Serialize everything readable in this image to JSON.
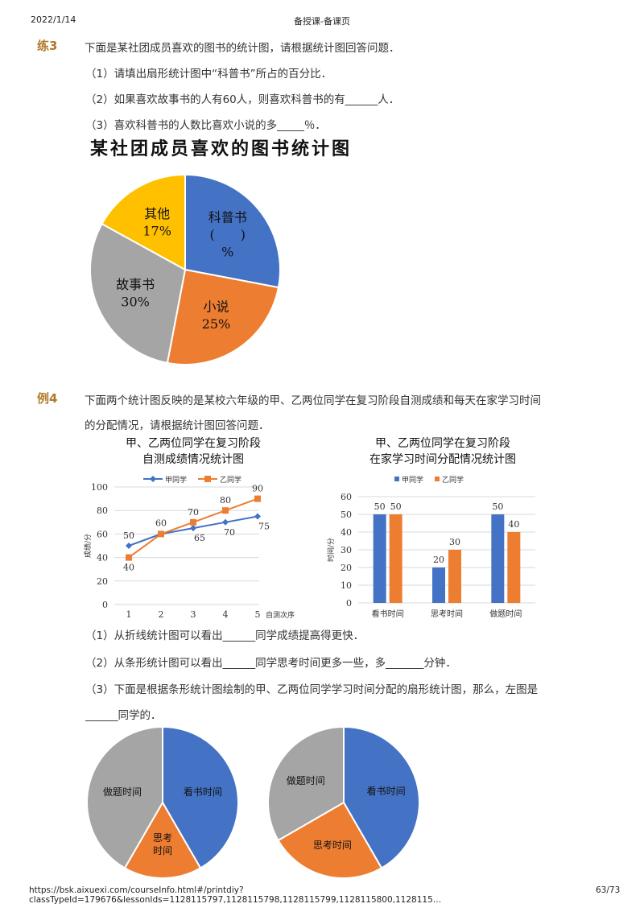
{
  "header": {
    "date": "2022/1/14",
    "title": "备授课-备课页"
  },
  "exercise3": {
    "label": "练3",
    "intro": "下面是某社团成员喜欢的图书的统计图，请根据统计图回答问题．",
    "q1": "（1）请填出扇形统计图中“科普书”所占的百分比．",
    "q2": "（2）如果喜欢故事书的人有60人，则喜欢科普书的有______人．",
    "q3": "（3）喜欢科普书的人数比喜欢小说的多_____％．"
  },
  "example4": {
    "label": "例4",
    "intro_line1": "下面两个统计图反映的是某校六年级的甲、乙两位同学在复习阶段自测成绩和每天在家学习时间",
    "intro_line2": "的分配情况，请根据统计图回答问题．",
    "q1": "（1）从折线统计图可以看出______同学成绩提高得更快．",
    "q2": "（2）从条形统计图可以看出______同学思考时间更多一些，多_______分钟．",
    "q3_line1": "（3）下面是根据条形统计图绘制的甲、乙两位同学学习时间分配的扇形统计图，那么，左图是",
    "q3_line2": "______同学的．"
  },
  "footer": {
    "url": "https://bsk.aixuexi.com/courseInfo.html#/printdiy?classTypeId=179676&lessonIds=1128115797,1128115798,1128115799,1128115800,1128115…",
    "page": "63/73"
  },
  "chart_data": [
    {
      "type": "pie",
      "title": "某社团成员喜欢的图书统计图",
      "categories": [
        "科普书",
        "小说",
        "故事书",
        "其他"
      ],
      "values": [
        28,
        25,
        30,
        17
      ],
      "labels": [
        "科普书\n(　　)\n%",
        "小说\n25%",
        "故事书\n30%",
        "其他\n17%"
      ],
      "colors": [
        "#4472c4",
        "#ed7d31",
        "#a5a5a5",
        "#ffc000"
      ],
      "start": "top, clockwise"
    },
    {
      "type": "line",
      "title": "甲、乙两位同学在复习阶段自测成绩情况统计图",
      "title_lines": [
        "甲、乙两位同学在复习阶段",
        "自测成绩情况统计图"
      ],
      "x": [
        1,
        2,
        3,
        4,
        5
      ],
      "xlabel": "自测次序",
      "ylabel": "成绩/分",
      "ylim": [
        0,
        100
      ],
      "yticks": [
        0,
        20,
        40,
        60,
        80,
        100
      ],
      "grid": true,
      "legend_position": "top",
      "series": [
        {
          "name": "甲同学",
          "values": [
            50,
            60,
            65,
            70,
            75
          ],
          "color": "#4472c4",
          "marker": "diamond"
        },
        {
          "name": "乙同学",
          "values": [
            40,
            60,
            70,
            80,
            90
          ],
          "color": "#ed7d31",
          "marker": "square"
        }
      ]
    },
    {
      "type": "bar",
      "title": "甲、乙两位同学在复习阶段在家学习时间分配情况统计图",
      "title_lines": [
        "甲、乙两位同学在复习阶段",
        "在家学习时间分配情况统计图"
      ],
      "categories": [
        "看书时间",
        "思考时间",
        "做题时间"
      ],
      "ylabel": "时间/分",
      "ylim": [
        0,
        60
      ],
      "yticks": [
        0,
        10,
        20,
        30,
        40,
        50,
        60
      ],
      "grid": true,
      "legend_position": "top",
      "series": [
        {
          "name": "甲同学",
          "values": [
            50,
            20,
            50
          ],
          "color": "#4472c4"
        },
        {
          "name": "乙同学",
          "values": [
            50,
            30,
            40
          ],
          "color": "#ed7d31"
        }
      ]
    },
    {
      "type": "pie",
      "title": "",
      "categories": [
        "看书时间",
        "思考时间",
        "做题时间"
      ],
      "values": [
        50,
        20,
        50
      ],
      "labels": [
        "看书时间",
        "思考\n时间",
        "做题时间"
      ],
      "colors": [
        "#4472c4",
        "#ed7d31",
        "#a5a5a5"
      ]
    },
    {
      "type": "pie",
      "title": "",
      "categories": [
        "看书时间",
        "思考时间",
        "做题时间"
      ],
      "values": [
        50,
        30,
        40
      ],
      "labels": [
        "看书时间",
        "思考时间",
        "做题时间"
      ],
      "colors": [
        "#4472c4",
        "#ed7d31",
        "#a5a5a5"
      ]
    }
  ]
}
